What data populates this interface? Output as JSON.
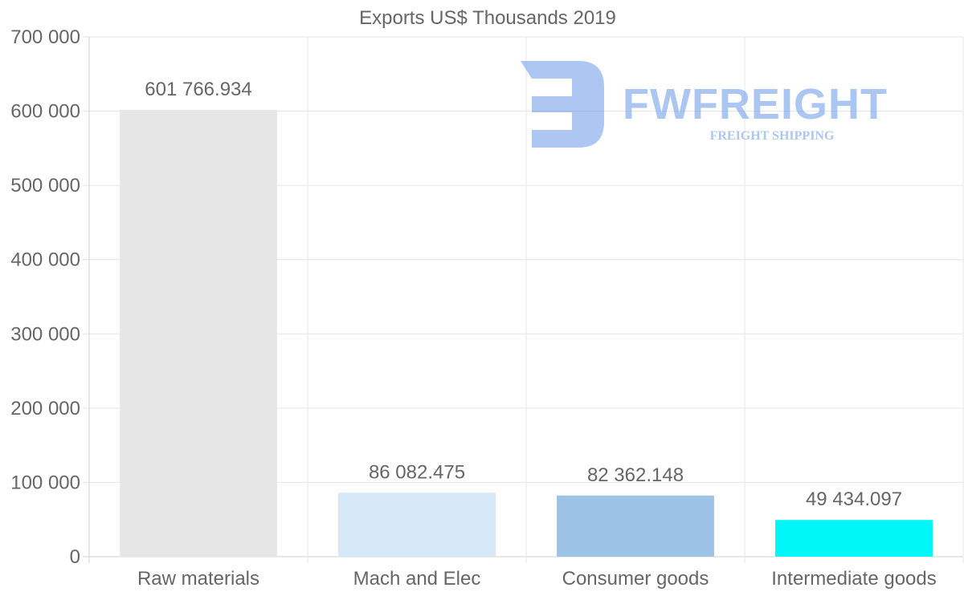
{
  "chart_data": {
    "type": "bar",
    "title": "Exports US$ Thousands 2019",
    "categories": [
      "Raw materials",
      "Mach and Elec",
      "Consumer goods",
      "Intermediate goods"
    ],
    "values": [
      601766.934,
      86082.475,
      82362.148,
      49434.097
    ],
    "value_labels": [
      "601 766.934",
      "86 082.475",
      "82 362.148",
      "49 434.097"
    ],
    "bar_colors": [
      "#e6e6e6",
      "#d6e7f7",
      "#9cc3e6",
      "#00f7f7"
    ],
    "ylim": [
      0,
      700000
    ],
    "y_ticks": [
      0,
      100000,
      200000,
      300000,
      400000,
      500000,
      600000,
      700000
    ],
    "y_tick_labels": [
      "0",
      "100 000",
      "200 000",
      "300 000",
      "400 000",
      "500 000",
      "600 000",
      "700 000"
    ],
    "xlabel": "",
    "ylabel": "",
    "grid": true,
    "legend": "none"
  },
  "watermark": {
    "name": "FWFREIGHT",
    "tagline": "FREIGHT SHIPPING",
    "color": "#5b8fe6"
  }
}
